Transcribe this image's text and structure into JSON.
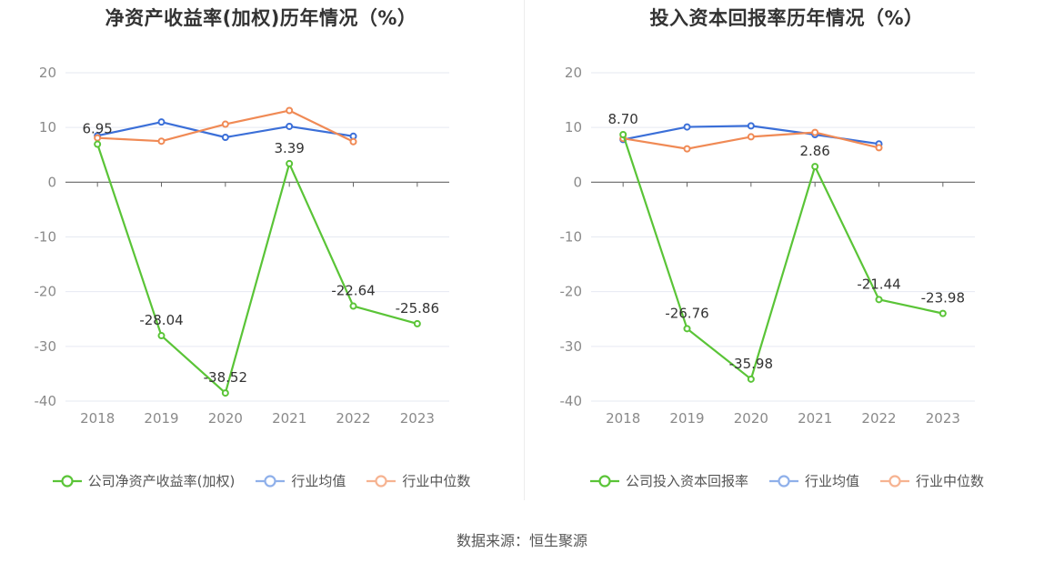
{
  "source_label": "数据来源：恒生聚源",
  "chart_data": [
    {
      "type": "line",
      "title": "净资产收益率(加权)历年情况（%）",
      "categories": [
        "2018",
        "2019",
        "2020",
        "2021",
        "2022",
        "2023"
      ],
      "ylim": [
        -40,
        20
      ],
      "yticks": [
        20,
        10,
        0,
        -10,
        -20,
        -30,
        -40
      ],
      "grid": true,
      "legend_position": "bottom",
      "series": [
        {
          "name": "公司净资产收益率(加权)",
          "color": "#5ac437",
          "values": [
            6.95,
            -28.04,
            -38.52,
            3.39,
            -22.64,
            -25.86
          ],
          "labels": [
            "6.95",
            "-28.04",
            "-38.52",
            "3.39",
            "-22.64",
            "-25.86"
          ]
        },
        {
          "name": "行业均值",
          "color": "#3b6fd8",
          "values": [
            8.5,
            11.0,
            8.2,
            10.2,
            8.4,
            null
          ]
        },
        {
          "name": "行业中位数",
          "color": "#f08a55",
          "values": [
            8.1,
            7.5,
            10.6,
            13.1,
            7.4,
            null
          ]
        }
      ]
    },
    {
      "type": "line",
      "title": "投入资本回报率历年情况（%）",
      "categories": [
        "2018",
        "2019",
        "2020",
        "2021",
        "2022",
        "2023"
      ],
      "ylim": [
        -40,
        20
      ],
      "yticks": [
        20,
        10,
        0,
        -10,
        -20,
        -30,
        -40
      ],
      "grid": true,
      "legend_position": "bottom",
      "series": [
        {
          "name": "公司投入资本回报率",
          "color": "#5ac437",
          "values": [
            8.7,
            -26.76,
            -35.98,
            2.86,
            -21.44,
            -23.98
          ],
          "labels": [
            "8.70",
            "-26.76",
            "-35.98",
            "2.86",
            "-21.44",
            "-23.98"
          ]
        },
        {
          "name": "行业均值",
          "color": "#3b6fd8",
          "values": [
            7.8,
            10.1,
            10.3,
            8.7,
            7.0,
            null
          ]
        },
        {
          "name": "行业中位数",
          "color": "#f08a55",
          "values": [
            8.0,
            6.1,
            8.3,
            9.1,
            6.3,
            null
          ]
        }
      ]
    }
  ]
}
